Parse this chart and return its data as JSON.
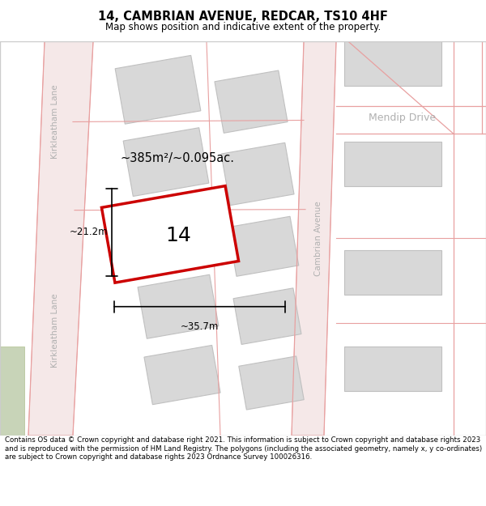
{
  "title": "14, CAMBRIAN AVENUE, REDCAR, TS10 4HF",
  "subtitle": "Map shows position and indicative extent of the property.",
  "footer": "Contains OS data © Crown copyright and database right 2021. This information is subject to Crown copyright and database rights 2023 and is reproduced with the permission of HM Land Registry. The polygons (including the associated geometry, namely x, y co-ordinates) are subject to Crown copyright and database rights 2023 Ordnance Survey 100026316.",
  "bg_color": "#ffffff",
  "map_bg": "#f0f0f0",
  "road_line_color": "#e8a0a0",
  "building_fill": "#d8d8d8",
  "building_edge": "#c0c0c0",
  "highlight_fill": "#ffffff",
  "highlight_edge": "#cc0000",
  "street_label_color": "#b0b0b0",
  "area_text": "~385m²/~0.095ac.",
  "property_label": "14",
  "dim_width": "~35.7m",
  "dim_height": "~21.2m",
  "kirkleatham_lane_label": "Kirkleatham Lane",
  "cambrian_avenue_label": "Cambrian Avenue",
  "mendip_drive_label": "Mendip Drive",
  "green_fill": "#c8d4b8",
  "green_edge": "#b0c090"
}
